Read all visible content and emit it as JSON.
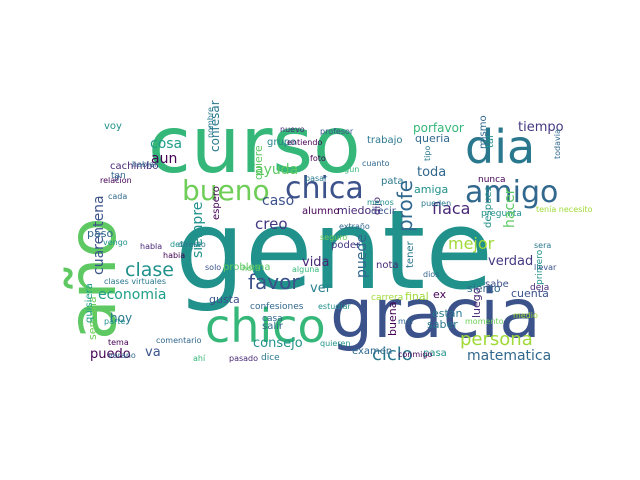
{
  "wordcloud": {
    "words": [
      {
        "text": "gente",
        "color": "#21918c"
      },
      {
        "text": "gracia",
        "color": "#3b528b"
      },
      {
        "text": "curso",
        "color": "#35b779"
      },
      {
        "text": "año",
        "color": "#5ec962"
      },
      {
        "text": "dia",
        "color": "#2a788e"
      },
      {
        "text": "chico",
        "color": "#35b779"
      },
      {
        "text": "amigo",
        "color": "#31688e"
      },
      {
        "text": "chica",
        "color": "#3b528b"
      },
      {
        "text": "bueno",
        "color": "#6ece58"
      },
      {
        "text": "persona",
        "color": "#a0da39"
      },
      {
        "text": "clase",
        "color": "#21918c"
      },
      {
        "text": "favor",
        "color": "#3b528b"
      },
      {
        "text": "profe",
        "color": "#31688e"
      },
      {
        "text": "ciclo",
        "color": "#2a788e"
      },
      {
        "text": "mejor",
        "color": "#a0da39"
      },
      {
        "text": "flaca",
        "color": "#482878"
      },
      {
        "text": "cuarentena",
        "color": "#3b528b"
      },
      {
        "text": "economia",
        "color": "#1f9e89"
      },
      {
        "text": "matematica",
        "color": "#31688e"
      },
      {
        "text": "creo",
        "color": "#443983"
      },
      {
        "text": "ayuda",
        "color": "#5ec962"
      },
      {
        "text": "toda",
        "color": "#31688e"
      },
      {
        "text": "tiempo",
        "color": "#443983"
      },
      {
        "text": "porfavor",
        "color": "#35b779"
      },
      {
        "text": "consejo",
        "color": "#21918c"
      },
      {
        "text": "verdad",
        "color": "#443983"
      },
      {
        "text": "cosa",
        "color": "#1f9e89"
      },
      {
        "text": "caso",
        "color": "#3b528b"
      },
      {
        "text": "aun",
        "color": "#440154"
      },
      {
        "text": "siempre",
        "color": "#21918c"
      },
      {
        "text": "puede",
        "color": "#31688e"
      },
      {
        "text": "vida",
        "color": "#482878"
      },
      {
        "text": "ver",
        "color": "#26828e"
      },
      {
        "text": "puedo",
        "color": "#440154"
      },
      {
        "text": "va",
        "color": "#3b528b"
      },
      {
        "text": "hoy",
        "color": "#2a788e"
      },
      {
        "text": "semana",
        "color": "#6ece58"
      },
      {
        "text": "paso",
        "color": "#31688e"
      },
      {
        "text": "quiere",
        "color": "#5ec962"
      },
      {
        "text": "amiga",
        "color": "#21918c"
      },
      {
        "text": "queria",
        "color": "#31688e"
      },
      {
        "text": "quisiera",
        "color": "#1f9e89"
      },
      {
        "text": "saber",
        "color": "#2a788e"
      },
      {
        "text": "ex",
        "color": "#440154"
      },
      {
        "text": "siento",
        "color": "#31688e"
      },
      {
        "text": "cuenta",
        "color": "#3b528b"
      },
      {
        "text": "luego",
        "color": "#482878"
      },
      {
        "text": "estan",
        "color": "#2a788e"
      },
      {
        "text": "examen",
        "color": "#31688e"
      },
      {
        "text": "pasa",
        "color": "#21918c"
      },
      {
        "text": "buena",
        "color": "#440154"
      },
      {
        "text": "miedo",
        "color": "#482878"
      },
      {
        "text": "alumno",
        "color": "#440154"
      },
      {
        "text": "decir",
        "color": "#3b528b"
      },
      {
        "text": "pata",
        "color": "#2a788e"
      },
      {
        "text": "mismo",
        "color": "#31688e"
      },
      {
        "text": "tal",
        "color": "#21918c"
      },
      {
        "text": "trabajo",
        "color": "#2a788e"
      },
      {
        "text": "dijo",
        "color": "#482878"
      },
      {
        "text": "problema",
        "color": "#5ec962"
      },
      {
        "text": "gusta",
        "color": "#3b528b"
      },
      {
        "text": "salir",
        "color": "#31688e"
      },
      {
        "text": "espero",
        "color": "#440154"
      },
      {
        "text": "grupo",
        "color": "#26828e"
      },
      {
        "text": "confesar",
        "color": "#2a788e"
      },
      {
        "text": "poder",
        "color": "#443983"
      },
      {
        "text": "nota",
        "color": "#482878"
      },
      {
        "text": "final",
        "color": "#a0da39"
      },
      {
        "text": "tener",
        "color": "#2a788e"
      },
      {
        "text": "despues",
        "color": "#21918c"
      },
      {
        "text": "sabe",
        "color": "#3b528b"
      },
      {
        "text": "pregunta",
        "color": "#21918c"
      },
      {
        "text": "nunca",
        "color": "#440154"
      },
      {
        "text": "hacer",
        "color": "#5ec962"
      },
      {
        "text": "carrera",
        "color": "#a0da39"
      },
      {
        "text": "casa",
        "color": "#31688e"
      },
      {
        "text": "confesiones",
        "color": "#31688e"
      },
      {
        "text": "dice",
        "color": "#2a788e"
      },
      {
        "text": "cachimbo",
        "color": "#482878"
      },
      {
        "text": "tan",
        "color": "#31688e"
      },
      {
        "text": "voy",
        "color": "#21918c"
      },
      {
        "text": "ir",
        "color": "#3b528b"
      },
      {
        "text": "clases virtuales",
        "color": "#2a788e"
      },
      {
        "text": "habia",
        "color": "#440154"
      },
      {
        "text": "algun",
        "color": "#35b779"
      },
      {
        "text": "nuevo",
        "color": "#482878"
      },
      {
        "text": "pueden",
        "color": "#2a788e"
      },
      {
        "text": "extraño",
        "color": "#31688e"
      },
      {
        "text": "alguna",
        "color": "#35b779"
      },
      {
        "text": "entiendo",
        "color": "#440154"
      },
      {
        "text": "profesor",
        "color": "#3b528b"
      },
      {
        "text": "nombre",
        "color": "#2a788e"
      },
      {
        "text": "foto",
        "color": "#440154"
      },
      {
        "text": "dios",
        "color": "#31688e"
      },
      {
        "text": "llevar",
        "color": "#3b528b"
      },
      {
        "text": "deja",
        "color": "#482878"
      },
      {
        "text": "menos",
        "color": "#21918c"
      },
      {
        "text": "mal",
        "color": "#31688e"
      },
      {
        "text": "sera",
        "color": "#2a788e"
      },
      {
        "text": "tema",
        "color": "#440154"
      },
      {
        "text": "habla",
        "color": "#482878"
      },
      {
        "text": "parte",
        "color": "#21918c"
      },
      {
        "text": "cada",
        "color": "#31688e"
      },
      {
        "text": "hablar",
        "color": "#31688e"
      },
      {
        "text": "relacion",
        "color": "#440154"
      },
      {
        "text": "vengo",
        "color": "#21918c"
      },
      {
        "text": "debería",
        "color": "#21918c"
      },
      {
        "text": "ahí",
        "color": "#35b779"
      },
      {
        "text": "pasado",
        "color": "#482878"
      },
      {
        "text": "verano",
        "color": "#31688e"
      },
      {
        "text": "comentario",
        "color": "#31688e"
      },
      {
        "text": "tipo",
        "color": "#2a788e"
      },
      {
        "text": "momento",
        "color": "#6ece58"
      },
      {
        "text": "primero",
        "color": "#21918c"
      },
      {
        "text": "tenía necesito",
        "color": "#a0da39"
      },
      {
        "text": "estudiar",
        "color": "#21918c"
      },
      {
        "text": "cuanto",
        "color": "#31688e"
      },
      {
        "text": "solo",
        "color": "#3b528b"
      },
      {
        "text": "hora",
        "color": "#5ec962"
      },
      {
        "text": "pasar",
        "color": "#2a788e"
      },
      {
        "text": "quieren",
        "color": "#21918c"
      },
      {
        "text": "conmigo",
        "color": "#440154"
      },
      {
        "text": "directo",
        "color": "#2a788e"
      },
      {
        "text": "medio",
        "color": "#a0da39"
      },
      {
        "text": "todavia",
        "color": "#31688e"
      },
      {
        "text": "seguro",
        "color": "#6ece58"
      }
    ]
  }
}
